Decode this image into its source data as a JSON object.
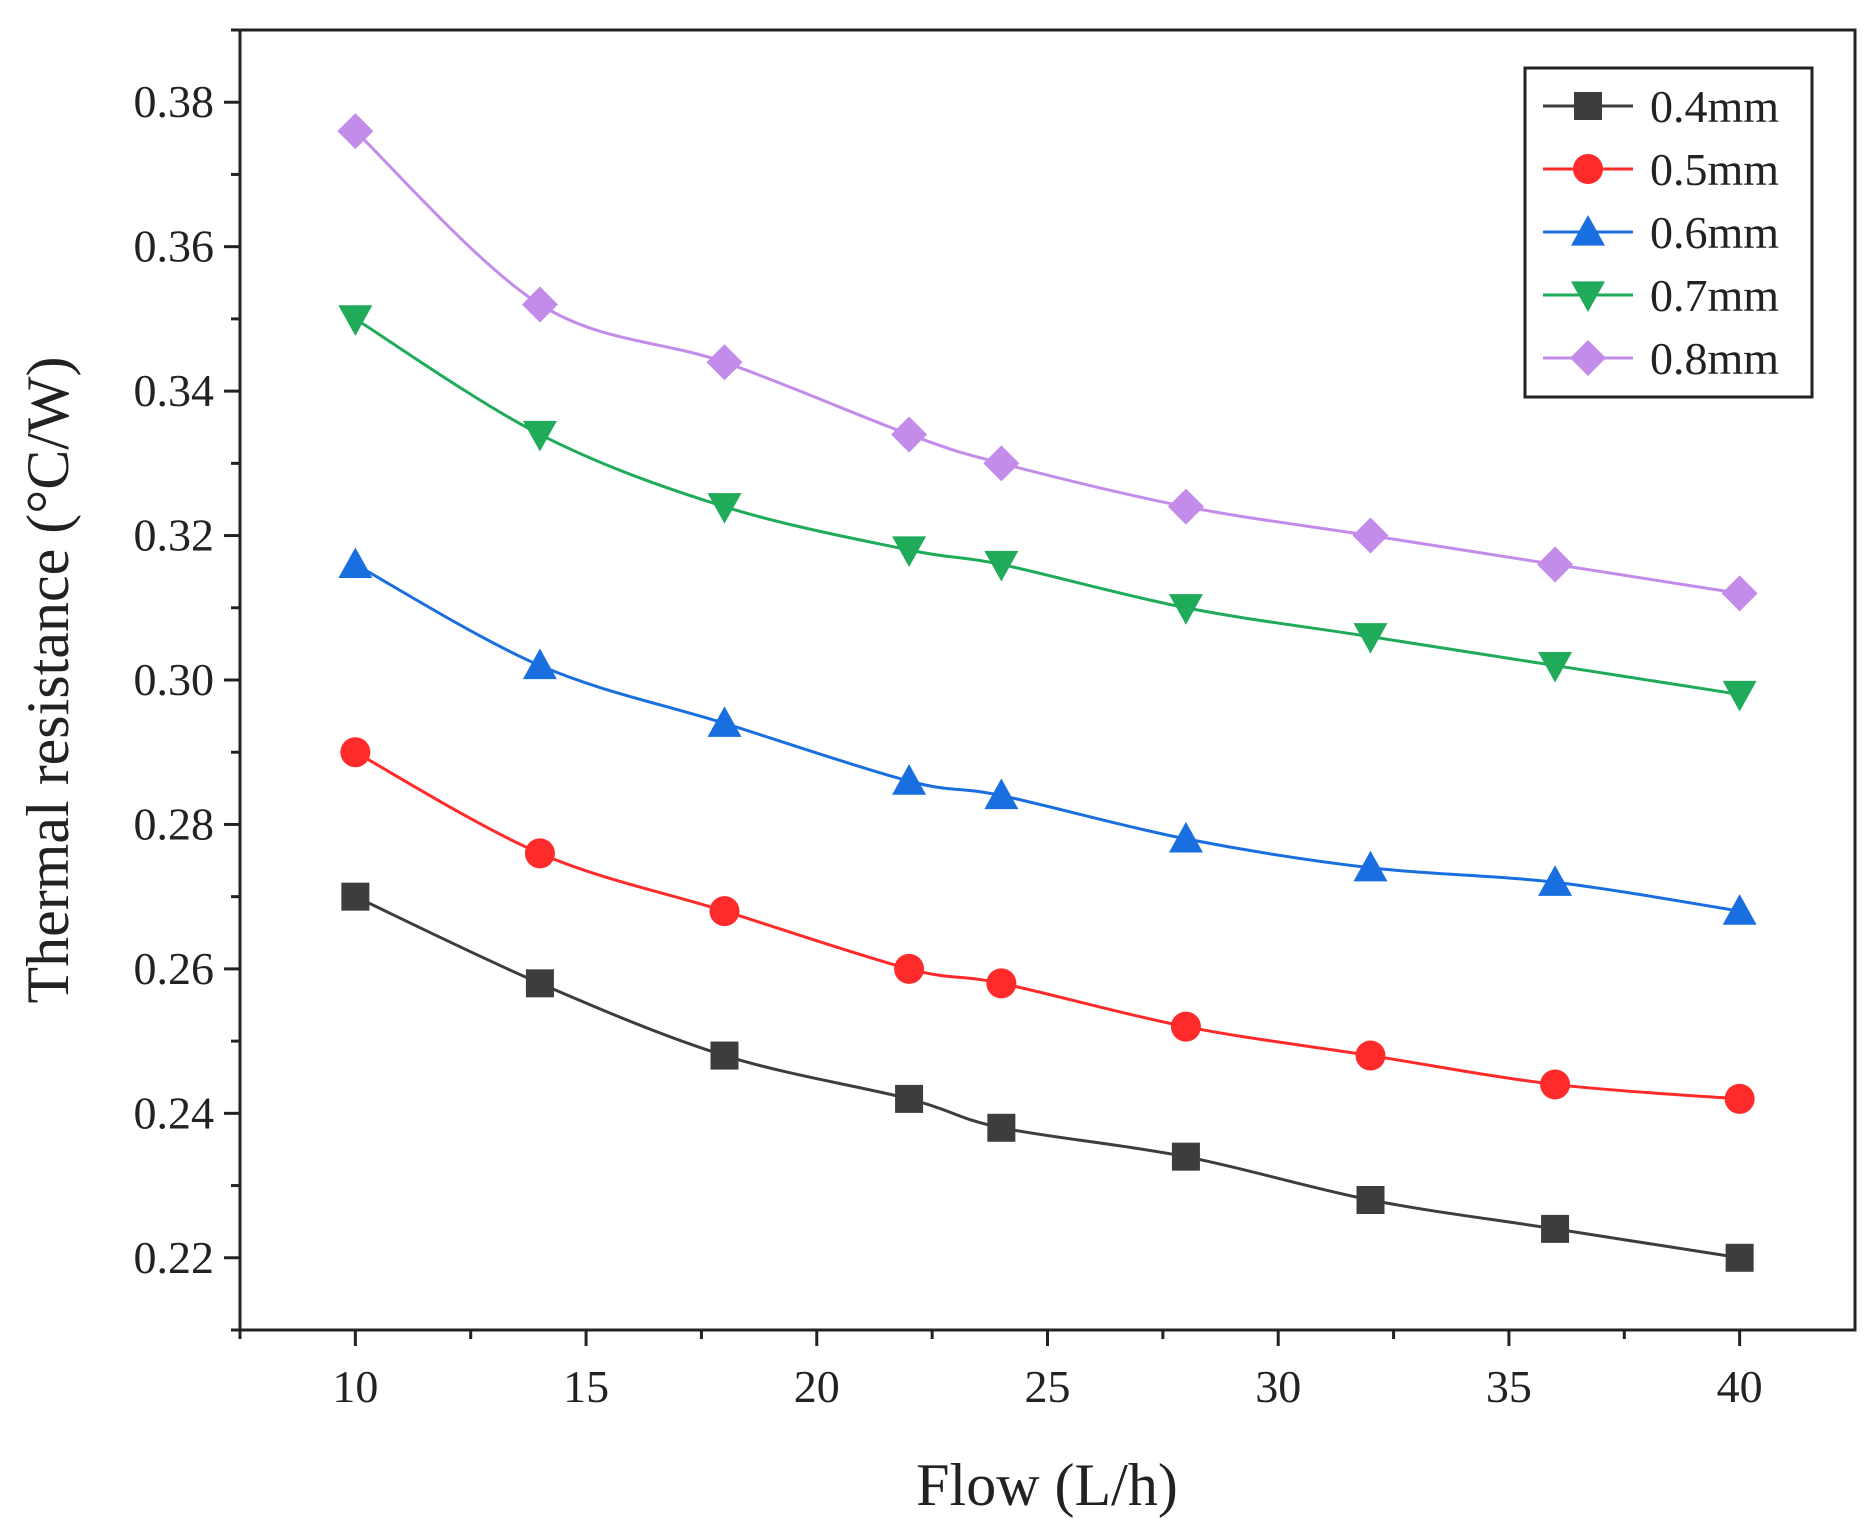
{
  "chart_data": {
    "type": "line",
    "title": "",
    "xlabel": "Flow (L/h)",
    "ylabel": "Thermal resistance (°C/W)",
    "xlim": [
      7.5,
      42.5
    ],
    "ylim": [
      0.21,
      0.39
    ],
    "x_ticks": [
      10,
      15,
      20,
      25,
      30,
      35,
      40
    ],
    "y_ticks": [
      0.22,
      0.24,
      0.26,
      0.28,
      0.3,
      0.32,
      0.34,
      0.36,
      0.38
    ],
    "x_tick_labels": [
      "10",
      "15",
      "20",
      "25",
      "30",
      "35",
      "40"
    ],
    "y_tick_labels": [
      "0.22",
      "0.24",
      "0.26",
      "0.28",
      "0.30",
      "0.32",
      "0.34",
      "0.36",
      "0.38"
    ],
    "grid": false,
    "legend_position": "top-right",
    "x": [
      10,
      14,
      18,
      22,
      24,
      28,
      32,
      36,
      40
    ],
    "series": [
      {
        "name": "0.4mm",
        "color": "#3d3d3d",
        "marker": "square",
        "values": [
          0.27,
          0.258,
          0.248,
          0.242,
          0.238,
          0.234,
          0.228,
          0.224,
          0.22
        ]
      },
      {
        "name": "0.5mm",
        "color": "#ff2b2b",
        "marker": "circle",
        "values": [
          0.29,
          0.276,
          0.268,
          0.26,
          0.258,
          0.252,
          0.248,
          0.244,
          0.242
        ]
      },
      {
        "name": "0.6mm",
        "color": "#1a6fe0",
        "marker": "triangle-up",
        "values": [
          0.316,
          0.302,
          0.294,
          0.286,
          0.284,
          0.278,
          0.274,
          0.272,
          0.268
        ]
      },
      {
        "name": "0.7mm",
        "color": "#1fab5a",
        "marker": "triangle-down",
        "values": [
          0.35,
          0.334,
          0.324,
          0.318,
          0.316,
          0.31,
          0.306,
          0.302,
          0.298
        ]
      },
      {
        "name": "0.8mm",
        "color": "#c38bea",
        "marker": "diamond",
        "values": [
          0.376,
          0.352,
          0.344,
          0.334,
          0.33,
          0.324,
          0.32,
          0.316,
          0.312
        ]
      }
    ]
  }
}
